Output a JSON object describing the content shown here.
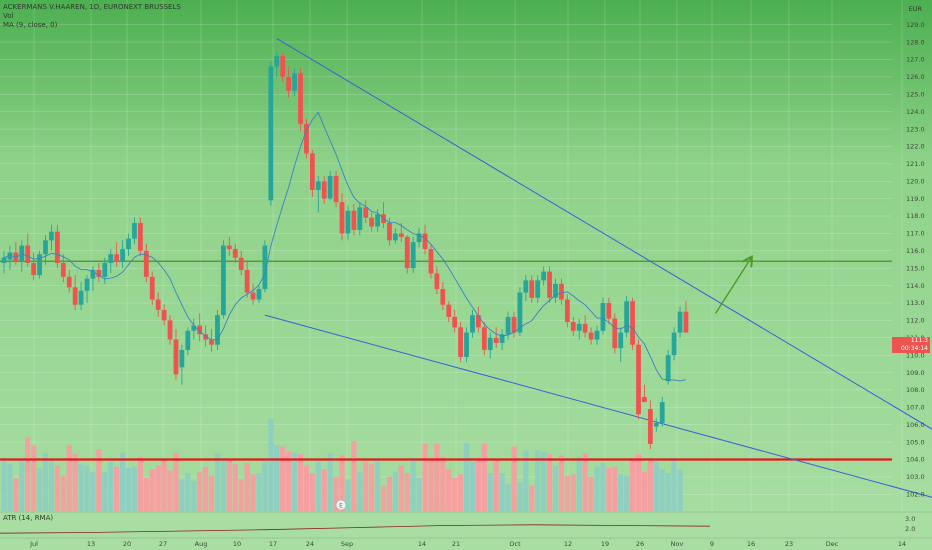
{
  "header": {
    "symbol_line": "ACKERMANS V.HAAREN, 1D, EURONEXT BRUSSELS",
    "vol_label": "Vol",
    "ma_label": "MA (9, close, 0)",
    "currency": "EUR",
    "atr_label": "ATR (14, RMA)"
  },
  "price_tags": {
    "last_price": "111.3",
    "countdown": "00:34:14"
  },
  "earnings_marker": "E",
  "colors": {
    "up": "#26a69a",
    "down": "#ef5350",
    "vol_up": "#8ecfc0",
    "vol_down": "#f4a0a0",
    "ma": "#3b82c4",
    "trendline": "#3a5fd6",
    "resistance": "#4f8f23",
    "support": "#e8161b",
    "arrow": "#4f9a2a"
  },
  "chart_data": {
    "type": "candlestick",
    "ylim": [
      101.5,
      129.5
    ],
    "y_ticks": [
      102,
      103,
      104,
      105,
      106,
      107,
      108,
      109,
      110,
      111,
      112,
      113,
      114,
      115,
      116,
      117,
      118,
      119,
      120,
      121,
      122,
      123,
      124,
      125,
      126,
      127,
      128,
      129
    ],
    "x_ticks": [
      "Jul",
      "13",
      "20",
      "27",
      "Aug",
      "10",
      "17",
      "24",
      "Sep",
      "14",
      "21",
      "Oct",
      "12",
      "19",
      "26",
      "Nov",
      "9",
      "16",
      "23",
      "Dec",
      "14"
    ],
    "candles": [
      {
        "o": 115.3,
        "h": 116.0,
        "l": 114.7,
        "c": 115.6
      },
      {
        "o": 115.5,
        "h": 116.3,
        "l": 114.9,
        "c": 115.9
      },
      {
        "o": 115.9,
        "h": 116.5,
        "l": 115.2,
        "c": 115.4
      },
      {
        "o": 115.4,
        "h": 116.6,
        "l": 114.8,
        "c": 116.3
      },
      {
        "o": 116.3,
        "h": 117.0,
        "l": 115.1,
        "c": 115.3
      },
      {
        "o": 115.3,
        "h": 115.9,
        "l": 114.3,
        "c": 114.6
      },
      {
        "o": 114.6,
        "h": 116.0,
        "l": 114.4,
        "c": 115.8
      },
      {
        "o": 115.8,
        "h": 116.9,
        "l": 115.2,
        "c": 116.6
      },
      {
        "o": 116.6,
        "h": 117.5,
        "l": 116.0,
        "c": 117.1
      },
      {
        "o": 117.1,
        "h": 117.5,
        "l": 115.0,
        "c": 115.3
      },
      {
        "o": 115.3,
        "h": 115.8,
        "l": 114.2,
        "c": 114.5
      },
      {
        "o": 114.5,
        "h": 114.9,
        "l": 113.6,
        "c": 113.9
      },
      {
        "o": 113.9,
        "h": 114.6,
        "l": 112.6,
        "c": 112.9
      },
      {
        "o": 112.9,
        "h": 114.2,
        "l": 112.6,
        "c": 113.7
      },
      {
        "o": 113.7,
        "h": 114.6,
        "l": 113.0,
        "c": 114.4
      },
      {
        "o": 114.4,
        "h": 115.1,
        "l": 113.7,
        "c": 114.9
      },
      {
        "o": 114.9,
        "h": 115.3,
        "l": 114.2,
        "c": 114.5
      },
      {
        "o": 114.5,
        "h": 115.6,
        "l": 114.1,
        "c": 115.3
      },
      {
        "o": 115.3,
        "h": 116.1,
        "l": 114.7,
        "c": 115.8
      },
      {
        "o": 115.8,
        "h": 116.5,
        "l": 115.1,
        "c": 115.4
      },
      {
        "o": 115.4,
        "h": 116.6,
        "l": 115.0,
        "c": 116.1
      },
      {
        "o": 116.1,
        "h": 117.0,
        "l": 115.7,
        "c": 116.7
      },
      {
        "o": 116.7,
        "h": 117.9,
        "l": 116.4,
        "c": 117.6
      },
      {
        "o": 117.6,
        "h": 117.9,
        "l": 115.7,
        "c": 116.0
      },
      {
        "o": 116.0,
        "h": 116.4,
        "l": 114.2,
        "c": 114.5
      },
      {
        "o": 114.5,
        "h": 114.8,
        "l": 112.9,
        "c": 113.2
      },
      {
        "o": 113.2,
        "h": 113.6,
        "l": 112.2,
        "c": 112.6
      },
      {
        "o": 112.6,
        "h": 112.9,
        "l": 111.7,
        "c": 112.0
      },
      {
        "o": 112.0,
        "h": 112.3,
        "l": 110.6,
        "c": 110.9
      },
      {
        "o": 110.9,
        "h": 111.5,
        "l": 108.6,
        "c": 108.9
      },
      {
        "o": 109.3,
        "h": 110.6,
        "l": 108.3,
        "c": 110.3
      },
      {
        "o": 110.3,
        "h": 111.6,
        "l": 110.0,
        "c": 111.4
      },
      {
        "o": 111.4,
        "h": 112.1,
        "l": 110.9,
        "c": 111.7
      },
      {
        "o": 111.7,
        "h": 112.4,
        "l": 110.8,
        "c": 111.2
      },
      {
        "o": 111.2,
        "h": 111.7,
        "l": 110.5,
        "c": 110.9
      },
      {
        "o": 110.9,
        "h": 111.5,
        "l": 110.2,
        "c": 110.6
      },
      {
        "o": 110.6,
        "h": 112.6,
        "l": 110.3,
        "c": 112.3
      },
      {
        "o": 112.3,
        "h": 116.6,
        "l": 112.1,
        "c": 116.3
      },
      {
        "o": 116.3,
        "h": 116.8,
        "l": 115.7,
        "c": 116.1
      },
      {
        "o": 116.1,
        "h": 116.4,
        "l": 115.3,
        "c": 115.6
      },
      {
        "o": 115.6,
        "h": 116.0,
        "l": 114.6,
        "c": 114.9
      },
      {
        "o": 114.9,
        "h": 115.4,
        "l": 113.3,
        "c": 113.6
      },
      {
        "o": 113.6,
        "h": 114.1,
        "l": 112.9,
        "c": 113.2
      },
      {
        "o": 113.2,
        "h": 114.0,
        "l": 113.0,
        "c": 113.8
      },
      {
        "o": 113.8,
        "h": 116.6,
        "l": 113.6,
        "c": 116.3
      },
      {
        "o": 118.9,
        "h": 126.9,
        "l": 118.6,
        "c": 126.6
      },
      {
        "o": 126.6,
        "h": 127.5,
        "l": 126.0,
        "c": 127.2
      },
      {
        "o": 127.2,
        "h": 127.4,
        "l": 125.7,
        "c": 126.0
      },
      {
        "o": 126.0,
        "h": 126.6,
        "l": 124.8,
        "c": 125.2
      },
      {
        "o": 125.2,
        "h": 126.5,
        "l": 124.9,
        "c": 126.2
      },
      {
        "o": 126.2,
        "h": 126.5,
        "l": 122.9,
        "c": 123.3
      },
      {
        "o": 123.3,
        "h": 123.6,
        "l": 121.3,
        "c": 121.6
      },
      {
        "o": 121.6,
        "h": 121.8,
        "l": 119.1,
        "c": 119.5
      },
      {
        "o": 119.5,
        "h": 120.3,
        "l": 118.2,
        "c": 120.0
      },
      {
        "o": 120.0,
        "h": 120.3,
        "l": 118.7,
        "c": 119.0
      },
      {
        "o": 119.0,
        "h": 120.6,
        "l": 118.9,
        "c": 120.3
      },
      {
        "o": 120.3,
        "h": 120.6,
        "l": 118.5,
        "c": 118.8
      },
      {
        "o": 118.8,
        "h": 119.3,
        "l": 116.6,
        "c": 117.0
      },
      {
        "o": 117.0,
        "h": 118.6,
        "l": 116.6,
        "c": 118.3
      },
      {
        "o": 118.3,
        "h": 118.7,
        "l": 116.9,
        "c": 117.2
      },
      {
        "o": 117.2,
        "h": 118.8,
        "l": 116.9,
        "c": 118.5
      },
      {
        "o": 118.5,
        "h": 118.9,
        "l": 117.6,
        "c": 117.9
      },
      {
        "o": 117.9,
        "h": 118.2,
        "l": 117.1,
        "c": 117.4
      },
      {
        "o": 117.4,
        "h": 118.4,
        "l": 117.1,
        "c": 118.1
      },
      {
        "o": 118.1,
        "h": 118.8,
        "l": 117.3,
        "c": 117.6
      },
      {
        "o": 117.6,
        "h": 117.9,
        "l": 116.3,
        "c": 116.6
      },
      {
        "o": 116.6,
        "h": 117.3,
        "l": 116.4,
        "c": 117.0
      },
      {
        "o": 117.0,
        "h": 117.6,
        "l": 116.5,
        "c": 116.8
      },
      {
        "o": 116.8,
        "h": 116.9,
        "l": 114.7,
        "c": 115.0
      },
      {
        "o": 115.0,
        "h": 116.8,
        "l": 114.7,
        "c": 116.5
      },
      {
        "o": 116.5,
        "h": 117.3,
        "l": 116.2,
        "c": 117.0
      },
      {
        "o": 117.0,
        "h": 117.5,
        "l": 115.8,
        "c": 116.1
      },
      {
        "o": 116.1,
        "h": 116.4,
        "l": 114.4,
        "c": 114.7
      },
      {
        "o": 114.7,
        "h": 115.1,
        "l": 113.5,
        "c": 113.8
      },
      {
        "o": 113.8,
        "h": 114.2,
        "l": 112.6,
        "c": 112.9
      },
      {
        "o": 112.9,
        "h": 113.1,
        "l": 111.9,
        "c": 112.2
      },
      {
        "o": 112.2,
        "h": 112.6,
        "l": 111.3,
        "c": 111.6
      },
      {
        "o": 111.6,
        "h": 111.9,
        "l": 109.6,
        "c": 109.9
      },
      {
        "o": 109.9,
        "h": 111.6,
        "l": 109.6,
        "c": 111.3
      },
      {
        "o": 111.3,
        "h": 112.6,
        "l": 111.0,
        "c": 112.3
      },
      {
        "o": 112.3,
        "h": 112.8,
        "l": 111.3,
        "c": 111.6
      },
      {
        "o": 111.6,
        "h": 111.9,
        "l": 110.0,
        "c": 110.3
      },
      {
        "o": 110.3,
        "h": 111.3,
        "l": 109.8,
        "c": 111.0
      },
      {
        "o": 111.0,
        "h": 111.6,
        "l": 110.4,
        "c": 110.7
      },
      {
        "o": 110.7,
        "h": 111.5,
        "l": 110.3,
        "c": 111.2
      },
      {
        "o": 111.2,
        "h": 112.5,
        "l": 110.9,
        "c": 112.2
      },
      {
        "o": 112.2,
        "h": 112.5,
        "l": 111.0,
        "c": 111.3
      },
      {
        "o": 111.3,
        "h": 113.9,
        "l": 111.1,
        "c": 113.6
      },
      {
        "o": 113.6,
        "h": 114.6,
        "l": 113.1,
        "c": 114.3
      },
      {
        "o": 114.3,
        "h": 114.6,
        "l": 113.0,
        "c": 113.3
      },
      {
        "o": 113.3,
        "h": 114.6,
        "l": 113.0,
        "c": 114.3
      },
      {
        "o": 114.3,
        "h": 115.1,
        "l": 114.0,
        "c": 114.8
      },
      {
        "o": 114.8,
        "h": 115.1,
        "l": 113.0,
        "c": 113.3
      },
      {
        "o": 113.3,
        "h": 114.4,
        "l": 113.0,
        "c": 114.1
      },
      {
        "o": 114.1,
        "h": 114.4,
        "l": 112.9,
        "c": 113.2
      },
      {
        "o": 113.2,
        "h": 113.5,
        "l": 111.6,
        "c": 111.9
      },
      {
        "o": 111.9,
        "h": 112.2,
        "l": 111.1,
        "c": 111.4
      },
      {
        "o": 111.4,
        "h": 112.1,
        "l": 110.9,
        "c": 111.8
      },
      {
        "o": 111.8,
        "h": 112.3,
        "l": 111.0,
        "c": 111.3
      },
      {
        "o": 111.3,
        "h": 111.6,
        "l": 110.6,
        "c": 110.9
      },
      {
        "o": 110.9,
        "h": 111.7,
        "l": 110.6,
        "c": 111.4
      },
      {
        "o": 111.4,
        "h": 113.3,
        "l": 111.2,
        "c": 113.0
      },
      {
        "o": 113.0,
        "h": 113.3,
        "l": 111.8,
        "c": 112.1
      },
      {
        "o": 112.1,
        "h": 112.4,
        "l": 110.1,
        "c": 110.4
      },
      {
        "o": 110.4,
        "h": 111.6,
        "l": 109.6,
        "c": 111.3
      },
      {
        "o": 111.3,
        "h": 113.4,
        "l": 111.0,
        "c": 113.1
      },
      {
        "o": 113.1,
        "h": 113.3,
        "l": 110.3,
        "c": 110.6
      },
      {
        "o": 110.6,
        "h": 110.9,
        "l": 106.3,
        "c": 106.6
      },
      {
        "o": 107.6,
        "h": 108.3,
        "l": 107.3,
        "c": 107.3
      },
      {
        "o": 106.9,
        "h": 107.4,
        "l": 104.6,
        "c": 104.9
      },
      {
        "o": 105.9,
        "h": 106.4,
        "l": 105.6,
        "c": 106.1
      },
      {
        "o": 106.1,
        "h": 107.6,
        "l": 105.9,
        "c": 107.3
      },
      {
        "o": 108.5,
        "h": 110.3,
        "l": 108.3,
        "c": 110.0
      },
      {
        "o": 110.0,
        "h": 111.6,
        "l": 109.7,
        "c": 111.3
      },
      {
        "o": 111.3,
        "h": 112.8,
        "l": 111.0,
        "c": 112.5
      },
      {
        "o": 112.5,
        "h": 113.1,
        "l": 111.3,
        "c": 111.3
      }
    ],
    "volume": [
      42,
      37,
      26,
      40,
      58,
      52,
      34,
      46,
      41,
      36,
      28,
      52,
      45,
      37,
      36,
      31,
      49,
      31,
      39,
      35,
      46,
      34,
      35,
      43,
      26,
      33,
      36,
      41,
      32,
      46,
      25,
      30,
      24,
      31,
      35,
      28,
      46,
      40,
      41,
      37,
      25,
      38,
      29,
      30,
      41,
      73,
      52,
      51,
      47,
      46,
      45,
      36,
      30,
      39,
      33,
      46,
      27,
      44,
      25,
      55,
      31,
      39,
      37,
      40,
      20,
      27,
      31,
      36,
      30,
      42,
      26,
      53,
      42,
      53,
      43,
      33,
      26,
      29,
      54,
      39,
      42,
      53,
      30,
      41,
      30,
      21,
      51,
      23,
      48,
      20,
      48,
      47,
      45,
      36,
      44,
      28,
      29,
      43,
      46,
      27,
      35,
      38,
      34,
      35,
      29,
      28,
      42,
      45,
      31,
      41,
      39,
      33,
      30,
      42,
      33
    ],
    "volume_peak": 87,
    "ma_period": 9,
    "drawings": {
      "resistance": 115.4,
      "support": 104.0,
      "downtrend": [
        [
          46,
          128.2
        ],
        [
          171,
          102.8
        ]
      ],
      "lower_trend": [
        [
          44,
          112.3
        ],
        [
          160,
          101.5
        ]
      ]
    },
    "atr": {
      "levels": [
        1.4,
        1.5,
        1.7,
        1.9,
        2.2,
        2.5,
        2.6,
        2.5,
        2.4
      ],
      "scale_ticks": [
        "3.0",
        "2.0"
      ]
    }
  }
}
